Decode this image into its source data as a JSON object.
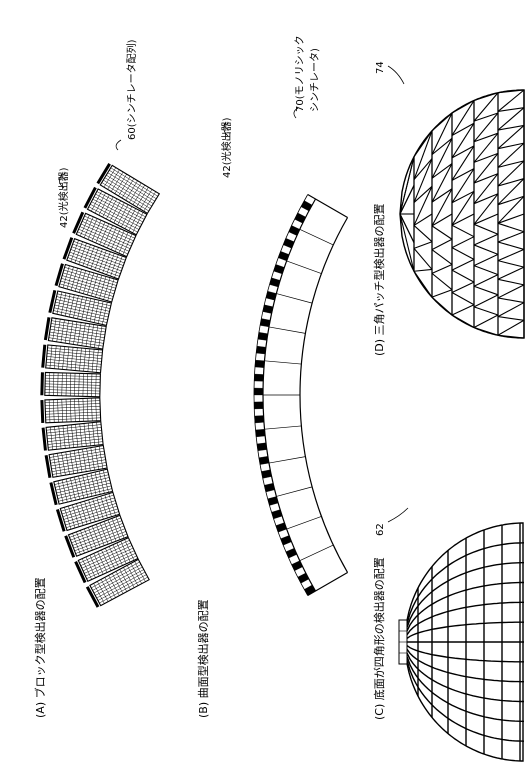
{
  "panels": {
    "A": {
      "caption": "(A) ブロック型検出器の配置",
      "label_detector": "42(光検出器)",
      "label_scint": "60(シンチレータ配列)"
    },
    "B": {
      "caption": "(B) 曲面型検出器の配置",
      "label_detector": "42(光検出器)",
      "label_scint_line1": "70(モノリシック",
      "label_scint_line2": "シンチレータ)"
    },
    "C": {
      "caption": "(C) 底面が四角形の検出器の配置",
      "ref": "62"
    },
    "D": {
      "caption": "(D) 三角パッチ型検出器の配置",
      "ref": "74"
    }
  },
  "colors": {
    "line": "#000000",
    "background": "#ffffff"
  }
}
